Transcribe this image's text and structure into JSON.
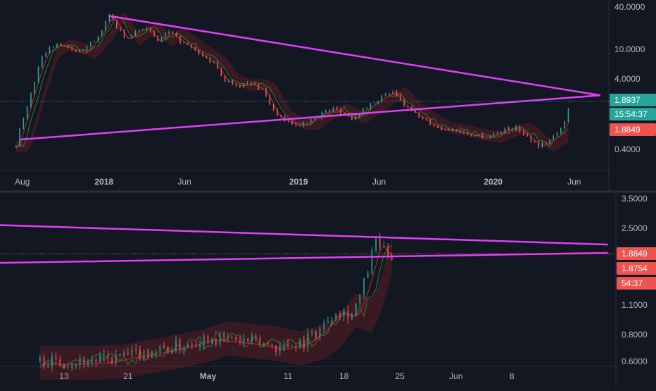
{
  "colors": {
    "background": "#131722",
    "axis_text": "#b2b5be",
    "divider": "#2a2e39",
    "trendline": "#e040fb",
    "price_line": "#26a69a",
    "candle_up": "#26a69a",
    "candle_down": "#ef5350",
    "ichimoku_green": "#2e7d32",
    "ichimoku_red": "#c62828",
    "badge_green": "#26a69a",
    "badge_red": "#ef5350",
    "badge_text": "#ffffff"
  },
  "chart_data": [
    {
      "type": "line",
      "panel": "top",
      "scale": "log",
      "x_ticks": [
        "Aug",
        "2018",
        "Jun",
        "2019",
        "Jun",
        "2020",
        "Jun"
      ],
      "y_ticks": [
        "40.0000",
        "10.0000",
        "4.0000",
        "0.4000"
      ],
      "ylim": [
        0.25,
        48
      ],
      "series": [
        {
          "x": [
            "2017-07-20",
            "2017-07-28",
            "2017-08-05",
            "2017-08-20",
            "2017-09-10",
            "2017-10-01",
            "2017-10-25",
            "2017-11-20",
            "2017-12-10",
            "2017-12-25",
            "2018-01-10",
            "2018-01-25",
            "2018-02-10",
            "2018-03-01",
            "2018-03-20",
            "2018-04-10",
            "2018-05-01",
            "2018-05-20",
            "2018-06-10",
            "2018-07-01",
            "2018-07-25",
            "2018-08-15",
            "2018-09-10",
            "2018-10-01",
            "2018-10-25",
            "2018-11-20",
            "2018-12-15",
            "2019-01-10",
            "2019-02-10",
            "2019-03-10",
            "2019-04-10",
            "2019-05-10",
            "2019-06-05",
            "2019-06-25",
            "2019-07-20",
            "2019-08-20",
            "2019-09-20",
            "2019-10-20",
            "2019-11-20",
            "2019-12-20",
            "2020-01-20",
            "2020-02-15",
            "2020-03-12",
            "2020-03-28",
            "2020-04-15",
            "2020-04-30",
            "2020-05-12",
            "2020-05-18",
            "2020-05-25"
          ],
          "y": [
            0.45,
            0.8,
            1.2,
            3.0,
            9.0,
            12.0,
            11.0,
            9.0,
            13.0,
            18.0,
            30.0,
            22.0,
            14.0,
            18.0,
            22.0,
            13.0,
            18.0,
            14.0,
            11.0,
            8.5,
            6.5,
            3.8,
            3.2,
            3.4,
            2.8,
            1.2,
            0.95,
            0.9,
            1.3,
            1.5,
            1.1,
            1.6,
            2.2,
            2.6,
            1.6,
            1.1,
            0.8,
            0.75,
            0.65,
            0.6,
            0.75,
            0.8,
            0.55,
            0.45,
            0.55,
            0.65,
            0.9,
            1.2,
            1.8937
          ]
        }
      ],
      "trendlines": [
        {
          "from": {
            "x": "2018-01-10",
            "y": 30.0
          },
          "to": {
            "x": "2020-07-20",
            "y": 2.3
          }
        },
        {
          "from": {
            "x": "2017-07-28",
            "y": 0.55
          },
          "to": {
            "x": "2020-07-20",
            "y": 2.3
          }
        }
      ],
      "price_labels": [
        {
          "text": "1.8937",
          "color": "#26a69a"
        },
        {
          "text": "15:54:37",
          "color": "#26a69a"
        },
        {
          "text": "1.8849",
          "color": "#ef5350"
        }
      ]
    },
    {
      "type": "line",
      "panel": "bottom",
      "scale": "log",
      "x_ticks": [
        "13",
        "21",
        "May",
        "11",
        "18",
        "25",
        "Jun",
        "8"
      ],
      "y_ticks": [
        "3.5000",
        "2.5000",
        "1.1000",
        "0.8000",
        "0.6000"
      ],
      "ylim": [
        0.58,
        3.5
      ],
      "series": [
        {
          "x": [
            "2020-04-10",
            "2020-04-14",
            "2020-04-18",
            "2020-04-21",
            "2020-04-25",
            "2020-04-28",
            "2020-05-01",
            "2020-05-04",
            "2020-05-07",
            "2020-05-10",
            "2020-05-13",
            "2020-05-15",
            "2020-05-17",
            "2020-05-19",
            "2020-05-20",
            "2020-05-21",
            "2020-05-22",
            "2020-05-23",
            "2020-05-24"
          ],
          "y": [
            0.6,
            0.6,
            0.61,
            0.64,
            0.68,
            0.72,
            0.78,
            0.76,
            0.74,
            0.7,
            0.75,
            0.85,
            1.05,
            1.0,
            1.2,
            1.6,
            2.2,
            1.95,
            1.8937
          ]
        }
      ],
      "trendlines": [
        {
          "from": {
            "x": "2020-04-03",
            "y": 2.6
          },
          "to": {
            "x": "2020-06-20",
            "y": 2.1
          }
        },
        {
          "from": {
            "x": "2020-04-03",
            "y": 1.72
          },
          "to": {
            "x": "2020-06-20",
            "y": 1.92
          }
        }
      ],
      "price_labels": [
        {
          "text": "1.8849",
          "color": "#ef5350"
        },
        {
          "text": "1.8754",
          "color": "#ef5350"
        },
        {
          "text": "54:37",
          "color": "#ef5350"
        }
      ]
    }
  ]
}
